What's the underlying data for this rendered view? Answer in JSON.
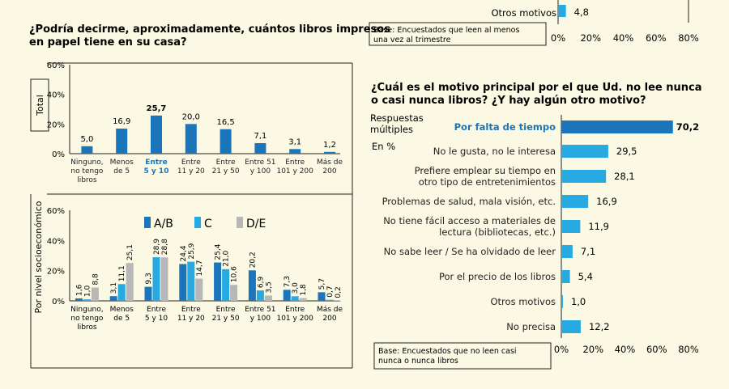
{
  "colors": {
    "bg": "#fbf8e3",
    "blue": "#1a75bb",
    "cyan": "#27aae1",
    "grey": "#b7b7b7",
    "highlight": "#1a75bb",
    "text": "#231f20"
  },
  "top_right": {
    "label": "Otros motivos",
    "value": "4,8",
    "base": [
      "Base: Encuestados que leen al menos",
      "una vez al trimestre"
    ],
    "ticks": [
      "0%",
      "20%",
      "40%",
      "60%",
      "80%"
    ]
  },
  "books_chart": {
    "title": [
      "¿Podría decirme, aproximadamente, cuántos libros impresos",
      "en papel tiene en su casa?"
    ],
    "side_label": "Total",
    "yticks": [
      "60%",
      "40%",
      "20%",
      "0%"
    ],
    "categories": [
      [
        "Ninguno,",
        "no tengo",
        "libros"
      ],
      [
        "Menos",
        "de 5"
      ],
      [
        "Entre",
        "5 y 10"
      ],
      [
        "Entre",
        "11 y 20"
      ],
      [
        "Entre",
        "21 y 50"
      ],
      [
        "Entre 51",
        "y 100"
      ],
      [
        "Entre",
        "101 y 200"
      ],
      [
        "Más de",
        "200"
      ]
    ],
    "labels": [
      "5,0",
      "16,9",
      "25,7",
      "20,0",
      "16,5",
      "7,1",
      "3,1",
      "1,2"
    ]
  },
  "socio_chart": {
    "side_label": "Por nivel socioeconómico",
    "yticks": [
      "60%",
      "40%",
      "20%",
      "0%"
    ],
    "legend": [
      "A/B",
      "C",
      "D/E"
    ],
    "categories": [
      [
        "Ninguno,",
        "no tengo",
        "libros"
      ],
      [
        "Menos",
        "de 5"
      ],
      [
        "Entre",
        "5 y 10"
      ],
      [
        "Entre",
        "11 y 20"
      ],
      [
        "Entre",
        "21 y 50"
      ],
      [
        "Entre 51",
        "y 100"
      ],
      [
        "Entre",
        "101 y 200"
      ],
      [
        "Más de",
        "200"
      ]
    ],
    "labels": [
      [
        "1,6",
        "1,0",
        "8,8"
      ],
      [
        "3,1",
        "11,1",
        "25,1"
      ],
      [
        "9,3",
        "28,9",
        "28,8"
      ],
      [
        "24,4",
        "25,9",
        "14,7"
      ],
      [
        "25,4",
        "21,0",
        "10,6"
      ],
      [
        "20,2",
        "6,9",
        "3,5"
      ],
      [
        "7,3",
        "3,0",
        "1,8"
      ],
      [
        "5,7",
        "0,7",
        "0,2"
      ]
    ]
  },
  "reasons_chart": {
    "title": [
      "¿Cuál es el motivo principal por el que Ud. no lee nunca",
      "o casi nunca libros? ¿Y hay algún otro motivo?"
    ],
    "note": [
      "Respuestas",
      "múltiples"
    ],
    "unit": "En %",
    "categories": [
      [
        "Por falta de tiempo"
      ],
      [
        "No le gusta, no le interesa"
      ],
      [
        "Prefiere emplear su tiempo en",
        "otro tipo de entretenimientos"
      ],
      [
        "Problemas de salud, mala visión, etc."
      ],
      [
        "No tiene fácil acceso a materiales de",
        "lectura (bibliotecas, etc.)"
      ],
      [
        "No sabe leer / Se ha olvidado de leer"
      ],
      [
        "Por el precio de los libros"
      ],
      [
        "Otros motivos"
      ],
      [
        "No precisa"
      ]
    ],
    "labels": [
      "70,2",
      "29,5",
      "28,1",
      "16,9",
      "11,9",
      "7,1",
      "5,4",
      "1,0",
      "12,2"
    ],
    "ticks": [
      "0%",
      "20%",
      "40%",
      "60%",
      "80%"
    ],
    "base": [
      "Base: Encuestados que no leen casi",
      "nunca o nunca libros"
    ]
  },
  "chart_data": [
    {
      "type": "bar",
      "title": "¿Podría decirme, aproximadamente, cuántos libros impresos en papel tiene en su casa?",
      "ylabel": "Total",
      "categories": [
        "Ninguno, no tengo libros",
        "Menos de 5",
        "Entre 5 y 10",
        "Entre 11 y 20",
        "Entre 21 y 50",
        "Entre 51 y 100",
        "Entre 101 y 200",
        "Más de 200"
      ],
      "values": [
        5.0,
        16.9,
        25.7,
        20.0,
        16.5,
        7.1,
        3.1,
        1.2
      ],
      "ylim": [
        0,
        60
      ],
      "highlight_index": 2
    },
    {
      "type": "bar",
      "ylabel": "Por nivel socioeconómico",
      "categories": [
        "Ninguno, no tengo libros",
        "Menos de 5",
        "Entre 5 y 10",
        "Entre 11 y 20",
        "Entre 21 y 50",
        "Entre 51 y 100",
        "Entre 101 y 200",
        "Más de 200"
      ],
      "series": [
        {
          "name": "A/B",
          "values": [
            1.6,
            3.1,
            9.3,
            24.4,
            25.4,
            20.2,
            7.3,
            5.7
          ]
        },
        {
          "name": "C",
          "values": [
            1.0,
            11.1,
            28.9,
            25.9,
            21.0,
            6.9,
            3.0,
            0.7
          ]
        },
        {
          "name": "D/E",
          "values": [
            8.8,
            25.1,
            28.8,
            14.7,
            10.6,
            3.5,
            1.8,
            0.2
          ]
        }
      ],
      "ylim": [
        0,
        60
      ],
      "legend": "top"
    },
    {
      "type": "bar",
      "orientation": "horizontal",
      "title": "¿Cuál es el motivo principal por el que Ud. no lee nunca o casi nunca libros? ¿Y hay algún otro motivo?",
      "categories": [
        "Por falta de tiempo",
        "No le gusta, no le interesa",
        "Prefiere emplear su tiempo en otro tipo de entretenimientos",
        "Problemas de salud, mala visión, etc.",
        "No tiene fácil acceso a materiales de lectura (bibliotecas, etc.)",
        "No sabe leer / Se ha olvidado de leer",
        "Por el precio de los libros",
        "Otros motivos",
        "No precisa"
      ],
      "values": [
        70.2,
        29.5,
        28.1,
        16.9,
        11.9,
        7.1,
        5.4,
        1.0,
        12.2
      ],
      "xlim": [
        0,
        80
      ],
      "highlight_index": 0
    },
    {
      "type": "bar",
      "orientation": "horizontal",
      "categories": [
        "Otros motivos"
      ],
      "values": [
        4.8
      ],
      "xlim": [
        0,
        80
      ]
    }
  ]
}
